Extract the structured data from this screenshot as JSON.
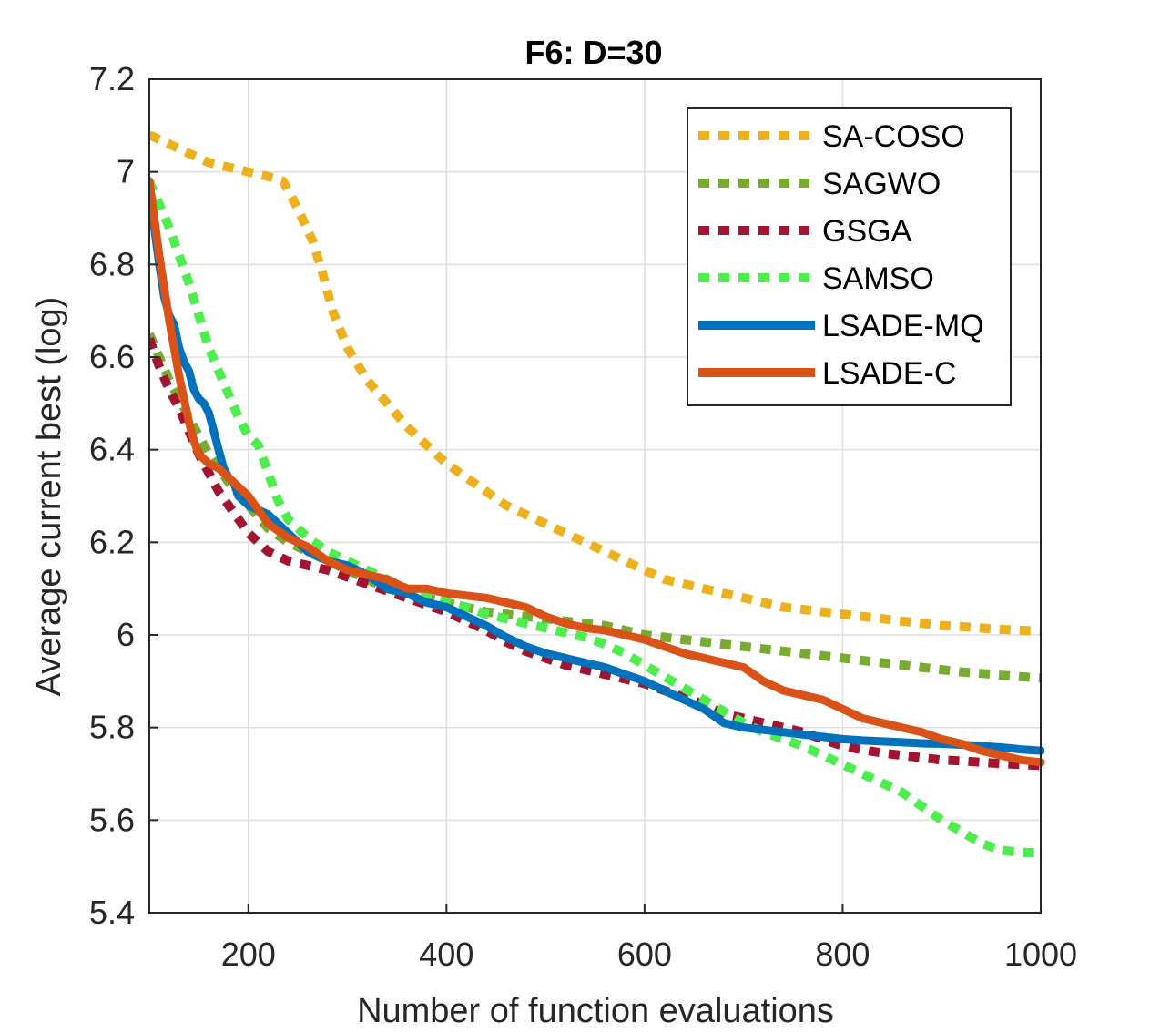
{
  "chart_data": {
    "type": "line",
    "title": "F6: D=30",
    "xlabel": "Number of function evaluations",
    "ylabel": "Average current best (log)",
    "xlim": [
      100,
      1000
    ],
    "ylim": [
      5.4,
      7.2
    ],
    "xticks": [
      200,
      400,
      600,
      800,
      1000
    ],
    "xtick_labels": [
      "200",
      "400",
      "600",
      "800",
      "1000"
    ],
    "yticks": [
      5.4,
      5.6,
      5.8,
      6.0,
      6.2,
      6.4,
      6.6,
      6.8,
      7.0,
      7.2
    ],
    "ytick_labels": [
      "5.4",
      "5.6",
      "5.8",
      "6",
      "6.2",
      "6.4",
      "6.6",
      "6.8",
      "7",
      "7.2"
    ],
    "grid": true,
    "legend_position": "top-right",
    "series": [
      {
        "name": "SA-COSO",
        "color": "#EDB120",
        "style": "dotted",
        "x": [
          100,
          120,
          140,
          160,
          180,
          200,
          220,
          235,
          250,
          265,
          275,
          285,
          300,
          320,
          340,
          360,
          380,
          400,
          420,
          440,
          460,
          480,
          500,
          520,
          540,
          560,
          580,
          600,
          620,
          640,
          660,
          680,
          700,
          720,
          740,
          760,
          780,
          800,
          820,
          840,
          860,
          880,
          900,
          920,
          940,
          960,
          980,
          1000
        ],
        "y": [
          7.08,
          7.06,
          7.04,
          7.02,
          7.01,
          7.0,
          6.99,
          6.98,
          6.92,
          6.85,
          6.78,
          6.7,
          6.62,
          6.55,
          6.5,
          6.45,
          6.41,
          6.37,
          6.34,
          6.31,
          6.28,
          6.26,
          6.24,
          6.22,
          6.2,
          6.18,
          6.16,
          6.14,
          6.12,
          6.11,
          6.1,
          6.09,
          6.08,
          6.07,
          6.06,
          6.055,
          6.05,
          6.045,
          6.04,
          6.035,
          6.03,
          6.025,
          6.02,
          6.018,
          6.015,
          6.012,
          6.01,
          6.008
        ]
      },
      {
        "name": "SAGWO",
        "color": "#77AC30",
        "style": "dotted",
        "x": [
          100,
          120,
          140,
          160,
          180,
          200,
          220,
          240,
          260,
          280,
          300,
          320,
          340,
          360,
          380,
          400,
          420,
          440,
          460,
          480,
          500,
          520,
          540,
          560,
          580,
          600,
          620,
          640,
          660,
          680,
          700,
          720,
          740,
          760,
          780,
          800,
          820,
          840,
          860,
          880,
          900,
          920,
          940,
          960,
          980,
          1000
        ],
        "y": [
          6.65,
          6.55,
          6.47,
          6.39,
          6.33,
          6.28,
          6.23,
          6.2,
          6.18,
          6.16,
          6.14,
          6.12,
          6.1,
          6.09,
          6.08,
          6.07,
          6.06,
          6.05,
          6.045,
          6.04,
          6.035,
          6.03,
          6.025,
          6.02,
          6.01,
          6.0,
          5.995,
          5.99,
          5.985,
          5.98,
          5.975,
          5.97,
          5.965,
          5.96,
          5.955,
          5.95,
          5.945,
          5.94,
          5.935,
          5.93,
          5.925,
          5.92,
          5.917,
          5.913,
          5.91,
          5.907
        ]
      },
      {
        "name": "GSGA",
        "color": "#A2142F",
        "style": "dotted",
        "x": [
          100,
          110,
          120,
          130,
          140,
          150,
          160,
          170,
          180,
          190,
          200,
          210,
          220,
          240,
          260,
          280,
          300,
          320,
          340,
          360,
          380,
          400,
          420,
          440,
          460,
          480,
          500,
          520,
          540,
          560,
          580,
          600,
          620,
          640,
          660,
          680,
          700,
          720,
          740,
          760,
          780,
          800,
          820,
          840,
          860,
          880,
          900,
          920,
          940,
          960,
          980,
          1000
        ],
        "y": [
          6.64,
          6.58,
          6.53,
          6.49,
          6.44,
          6.39,
          6.35,
          6.31,
          6.28,
          6.25,
          6.22,
          6.2,
          6.18,
          6.16,
          6.15,
          6.14,
          6.125,
          6.11,
          6.095,
          6.08,
          6.065,
          6.05,
          6.03,
          6.01,
          5.985,
          5.965,
          5.95,
          5.935,
          5.925,
          5.915,
          5.905,
          5.895,
          5.88,
          5.865,
          5.85,
          5.83,
          5.82,
          5.81,
          5.8,
          5.79,
          5.775,
          5.76,
          5.752,
          5.745,
          5.74,
          5.735,
          5.73,
          5.728,
          5.725,
          5.722,
          5.72,
          5.718
        ]
      },
      {
        "name": "SAMSO",
        "color": "#4DED4D",
        "style": "dotted",
        "x": [
          100,
          110,
          120,
          130,
          140,
          150,
          160,
          170,
          180,
          190,
          200,
          210,
          220,
          230,
          240,
          250,
          260,
          280,
          300,
          320,
          340,
          360,
          380,
          400,
          420,
          440,
          460,
          480,
          500,
          520,
          540,
          560,
          580,
          600,
          620,
          640,
          660,
          680,
          700,
          720,
          740,
          760,
          780,
          800,
          820,
          840,
          860,
          880,
          900,
          920,
          940,
          960,
          980,
          1000
        ],
        "y": [
          6.98,
          6.93,
          6.88,
          6.82,
          6.76,
          6.69,
          6.62,
          6.57,
          6.52,
          6.47,
          6.43,
          6.41,
          6.35,
          6.29,
          6.25,
          6.23,
          6.21,
          6.18,
          6.16,
          6.14,
          6.12,
          6.1,
          6.085,
          6.07,
          6.06,
          6.045,
          6.035,
          6.025,
          6.015,
          6.005,
          5.995,
          5.98,
          5.96,
          5.935,
          5.91,
          5.885,
          5.86,
          5.835,
          5.81,
          5.79,
          5.775,
          5.76,
          5.74,
          5.72,
          5.7,
          5.68,
          5.66,
          5.63,
          5.6,
          5.575,
          5.55,
          5.535,
          5.53,
          5.53
        ]
      },
      {
        "name": "LSADE-MQ",
        "color": "#0072BD",
        "style": "solid",
        "x": [
          100,
          105,
          110,
          115,
          120,
          125,
          130,
          135,
          140,
          145,
          150,
          155,
          160,
          165,
          170,
          175,
          180,
          185,
          190,
          195,
          200,
          210,
          220,
          230,
          240,
          250,
          260,
          280,
          300,
          320,
          340,
          360,
          380,
          400,
          420,
          440,
          460,
          480,
          500,
          520,
          540,
          560,
          580,
          600,
          620,
          640,
          660,
          680,
          700,
          720,
          740,
          760,
          780,
          800,
          820,
          840,
          860,
          880,
          900,
          920,
          940,
          960,
          980,
          1000
        ],
        "y": [
          6.96,
          6.88,
          6.8,
          6.73,
          6.69,
          6.67,
          6.62,
          6.59,
          6.57,
          6.53,
          6.51,
          6.5,
          6.48,
          6.44,
          6.4,
          6.36,
          6.34,
          6.33,
          6.3,
          6.29,
          6.28,
          6.27,
          6.26,
          6.24,
          6.22,
          6.2,
          6.18,
          6.16,
          6.15,
          6.13,
          6.1,
          6.09,
          6.07,
          6.06,
          6.04,
          6.02,
          5.995,
          5.975,
          5.96,
          5.95,
          5.94,
          5.93,
          5.915,
          5.9,
          5.88,
          5.86,
          5.84,
          5.81,
          5.8,
          5.795,
          5.79,
          5.785,
          5.78,
          5.775,
          5.772,
          5.77,
          5.768,
          5.766,
          5.765,
          5.763,
          5.76,
          5.757,
          5.753,
          5.75
        ]
      },
      {
        "name": "LSADE-C",
        "color": "#D95319",
        "style": "solid",
        "x": [
          100,
          105,
          110,
          115,
          120,
          125,
          130,
          135,
          140,
          145,
          150,
          155,
          160,
          170,
          180,
          190,
          200,
          210,
          220,
          240,
          260,
          280,
          300,
          320,
          340,
          360,
          380,
          400,
          420,
          440,
          460,
          480,
          500,
          520,
          540,
          560,
          580,
          600,
          620,
          640,
          660,
          680,
          700,
          720,
          740,
          760,
          780,
          800,
          820,
          840,
          860,
          880,
          900,
          920,
          940,
          960,
          980,
          1000
        ],
        "y": [
          6.98,
          6.9,
          6.82,
          6.75,
          6.68,
          6.62,
          6.56,
          6.51,
          6.46,
          6.42,
          6.39,
          6.38,
          6.37,
          6.36,
          6.34,
          6.32,
          6.3,
          6.27,
          6.24,
          6.21,
          6.19,
          6.16,
          6.14,
          6.13,
          6.12,
          6.1,
          6.1,
          6.09,
          6.085,
          6.08,
          6.07,
          6.06,
          6.04,
          6.025,
          6.015,
          6.01,
          6.0,
          5.99,
          5.975,
          5.96,
          5.95,
          5.94,
          5.93,
          5.9,
          5.88,
          5.87,
          5.86,
          5.84,
          5.82,
          5.81,
          5.8,
          5.79,
          5.775,
          5.765,
          5.75,
          5.74,
          5.73,
          5.725
        ]
      }
    ]
  }
}
